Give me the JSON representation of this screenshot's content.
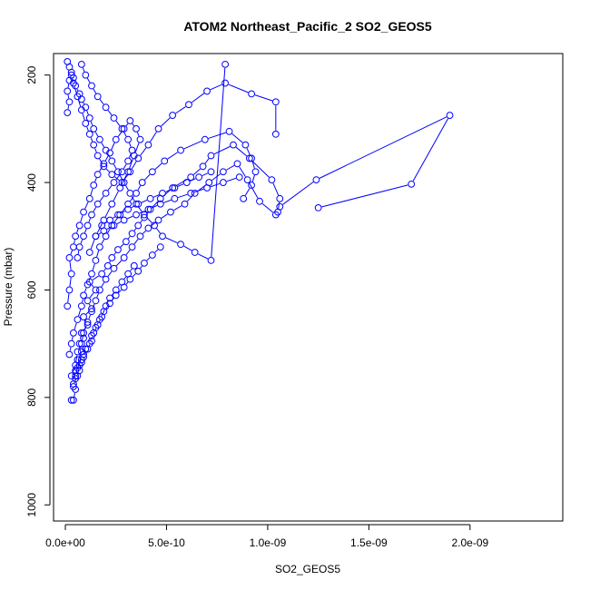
{
  "chart_data": {
    "type": "line",
    "title": "ATOM2 Northeast_Pacific_2 SO2_GEOS5",
    "xlabel": "SO2_GEOS5",
    "ylabel": "Pressure (mbar)",
    "xlim": [
      0,
      2.4e-09
    ],
    "ylim": [
      1030,
      160
    ],
    "y_reversed": true,
    "grid": false,
    "legend": "none",
    "marker": "open-circle",
    "color": "#0000ff",
    "x_ticks": [
      {
        "value": 0,
        "label": "0.0e+00"
      },
      {
        "value": 5e-10,
        "label": "5.0e-10"
      },
      {
        "value": 1e-09,
        "label": "1.0e-09"
      },
      {
        "value": 1.5e-09,
        "label": "1.5e-09"
      },
      {
        "value": 2e-09,
        "label": "2.0e-09"
      }
    ],
    "y_ticks": [
      {
        "value": 200,
        "label": "200"
      },
      {
        "value": 400,
        "label": "400"
      },
      {
        "value": 600,
        "label": "600"
      },
      {
        "value": 800,
        "label": "800"
      },
      {
        "value": 1000,
        "label": "1000"
      }
    ],
    "series": [
      {
        "x": [
          3e-11,
          4e-11,
          5e-11,
          4e-11,
          6e-11,
          5e-11,
          7e-11,
          6e-11,
          8e-11,
          7e-11,
          9e-11,
          8e-11,
          1.1e-10,
          9e-11,
          1.3e-10,
          1.1e-10,
          1.5e-10,
          1.2e-10,
          1.8e-10,
          2.1e-10,
          2.3e-10,
          2.6e-10,
          3e-10,
          3.3e-10,
          3.6e-10,
          3.9e-10,
          4.2e-10,
          4.7e-10,
          5.3e-10,
          6.2e-10,
          6.8e-10,
          7.2e-10,
          8.3e-10,
          9.1e-10,
          1.02e-09,
          1.06e-09,
          1.05e-09,
          1.06e-09,
          1.24e-09,
          1.9e-09,
          1.71e-09,
          1.25e-09
        ],
        "y": [
          805,
          805,
          785,
          775,
          760,
          750,
          740,
          730,
          715,
          700,
          690,
          680,
          665,
          650,
          635,
          620,
          600,
          585,
          570,
          555,
          540,
          525,
          510,
          495,
          480,
          465,
          450,
          430,
          410,
          390,
          370,
          350,
          330,
          355,
          395,
          430,
          455,
          445,
          395,
          275,
          403,
          447
        ]
      },
      {
        "x": [
          3e-11,
          5e-11,
          6e-11,
          8e-11,
          9e-11,
          1.1e-10,
          1.3e-10,
          1.5e-10,
          1.7e-10,
          2e-10,
          2.4e-10,
          2.9e-10,
          3.3e-10,
          3.7e-10,
          4.1e-10,
          4.6e-10,
          5.2e-10,
          5.9e-10,
          6.4e-10,
          7.1e-10,
          7.8e-10,
          8.5e-10,
          9e-10,
          9.6e-10,
          1.04e-09
        ],
        "y": [
          760,
          740,
          715,
          700,
          680,
          660,
          640,
          620,
          600,
          580,
          560,
          540,
          520,
          500,
          485,
          470,
          455,
          440,
          420,
          400,
          380,
          365,
          395,
          435,
          460
        ]
      },
      {
        "x": [
          2e-11,
          3e-11,
          4e-11,
          6e-11,
          8e-11,
          9e-11,
          1.1e-10,
          1.3e-10,
          1.5e-10,
          1.7e-10,
          2e-10,
          2.3e-10,
          2.7e-10,
          3.1e-10,
          3.5e-10,
          3.8e-10,
          4.3e-10,
          4.9e-10,
          5.7e-10,
          6.9e-10,
          8.1e-10,
          8.9e-10,
          9.2e-10,
          9.4e-10,
          9.2e-10,
          8.8e-10
        ],
        "y": [
          720,
          700,
          680,
          655,
          630,
          610,
          590,
          570,
          545,
          520,
          500,
          480,
          460,
          440,
          420,
          400,
          380,
          360,
          340,
          320,
          305,
          330,
          355,
          380,
          405,
          430
        ]
      },
      {
        "x": [
          1e-11,
          2e-11,
          3e-11,
          2e-11,
          4e-11,
          5e-11,
          7e-11,
          9e-11,
          1.2e-10,
          1.4e-10,
          1.6e-10,
          1.9e-10,
          2.2e-10,
          2.5e-10,
          2.9e-10,
          3.2e-10,
          3.5e-10,
          3.7e-10,
          3.4e-10,
          3.1e-10,
          2.7e-10,
          2.3e-10,
          1.9e-10,
          1.5e-10,
          1.2e-10
        ],
        "y": [
          630,
          600,
          570,
          540,
          520,
          500,
          480,
          455,
          430,
          405,
          385,
          365,
          345,
          320,
          300,
          285,
          300,
          320,
          350,
          380,
          410,
          440,
          470,
          500,
          530
        ]
      },
      {
        "x": [
          1e-11,
          2e-11,
          1e-11,
          2e-11,
          3e-11,
          4e-11,
          6e-11,
          8e-11,
          1e-10,
          1.2e-10,
          1.4e-10,
          1.6e-10,
          1.9e-10,
          2.3e-10,
          2.8e-10,
          3.2e-10,
          3.6e-10,
          4.1e-10,
          4.6e-10,
          5.3e-10,
          6.1e-10,
          7e-10,
          7.9e-10,
          9.2e-10,
          1.04e-09,
          1.04e-09
        ],
        "y": [
          270,
          250,
          230,
          210,
          200,
          215,
          240,
          265,
          290,
          310,
          330,
          350,
          370,
          385,
          400,
          380,
          355,
          330,
          300,
          275,
          255,
          230,
          215,
          235,
          250,
          310
        ]
      },
      {
        "x": [
          1e-11,
          2e-11,
          3e-11,
          4e-11,
          5e-11,
          7e-11,
          8e-11,
          1e-10,
          1.2e-10,
          1.4e-10,
          1.7e-10,
          2e-10,
          2.3e-10,
          2.6e-10,
          2.9e-10,
          3.2e-10,
          3.5e-10,
          3.9e-10,
          4.4e-10,
          4.8e-10,
          5.7e-10,
          6.4e-10,
          7.2e-10,
          7.9e-10
        ],
        "y": [
          175,
          185,
          195,
          205,
          220,
          235,
          245,
          260,
          280,
          300,
          320,
          340,
          360,
          380,
          400,
          420,
          440,
          460,
          480,
          500,
          515,
          530,
          545,
          180
        ]
      },
      {
        "x": [
          5e-11,
          6e-11,
          8e-11,
          9e-11,
          1e-10,
          1.2e-10,
          1.3e-10,
          1.5e-10,
          1.7e-10,
          1.9e-10,
          2.2e-10,
          2.5e-10,
          2.9e-10,
          3.2e-10,
          3.6e-10,
          3.9e-10,
          4.3e-10,
          4.7e-10
        ],
        "y": [
          760,
          745,
          730,
          720,
          710,
          700,
          685,
          670,
          655,
          640,
          625,
          610,
          595,
          580,
          565,
          550,
          535,
          520
        ]
      },
      {
        "x": [
          4e-11,
          5e-11,
          7e-11,
          8e-11,
          9e-11,
          1.1e-10,
          1.3e-10,
          1.4e-10,
          1.6e-10,
          1.8e-10,
          2e-10,
          2.2e-10,
          2.5e-10,
          2.8e-10,
          3.1e-10,
          3.4e-10
        ],
        "y": [
          780,
          765,
          750,
          735,
          725,
          710,
          695,
          680,
          665,
          650,
          630,
          615,
          600,
          585,
          570,
          555
        ]
      },
      {
        "x": [
          8e-11,
          1e-10,
          1.3e-10,
          1.6e-10,
          2e-10,
          2.4e-10,
          2.8e-10,
          3.1e-10,
          3.3e-10,
          3.1e-10,
          2.8e-10,
          2.4e-10,
          2e-10,
          1.6e-10,
          1.3e-10,
          1.1e-10,
          9e-11,
          7e-11,
          6e-11
        ],
        "y": [
          180,
          200,
          220,
          240,
          260,
          280,
          300,
          320,
          340,
          360,
          380,
          400,
          420,
          440,
          460,
          480,
          500,
          520,
          540
        ]
      },
      {
        "x": [
          1.8e-10,
          2.2e-10,
          2.6e-10,
          3.1e-10,
          3.6e-10,
          4.2e-10,
          4.8e-10,
          5.4e-10,
          6e-10,
          6.6e-10,
          7.2e-10
        ],
        "y": [
          480,
          470,
          460,
          450,
          440,
          430,
          420,
          410,
          400,
          390,
          380
        ]
      },
      {
        "x": [
          1.5e-10,
          1.9e-10,
          2.4e-10,
          2.9e-10,
          3.5e-10,
          4.1e-10,
          4.7e-10,
          5.4e-10,
          6.2e-10,
          7e-10,
          7.8e-10,
          8.6e-10
        ],
        "y": [
          500,
          490,
          480,
          470,
          460,
          450,
          440,
          430,
          420,
          410,
          400,
          390
        ]
      }
    ]
  }
}
